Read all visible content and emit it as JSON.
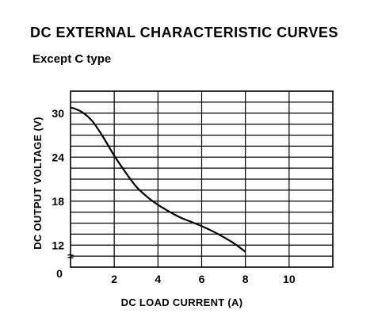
{
  "chart_data": {
    "type": "line",
    "title": "DC EXTERNAL CHARACTERISTIC CURVES",
    "subtitle": "Except C type",
    "xlabel": "DC LOAD CURRENT (A)",
    "ylabel": "DC OUTPUT VOLTAGE (V)",
    "xlim": [
      0,
      12
    ],
    "ylim": [
      9,
      33
    ],
    "origin_label": "0",
    "axis_break_symbol": "≈",
    "x_ticks": [
      {
        "value": 2,
        "label": "2"
      },
      {
        "value": 4,
        "label": "4"
      },
      {
        "value": 6,
        "label": "6"
      },
      {
        "value": 8,
        "label": "8"
      },
      {
        "value": 10,
        "label": "10"
      }
    ],
    "y_ticks": [
      {
        "value": 12,
        "label": "12"
      },
      {
        "value": 18,
        "label": "18"
      },
      {
        "value": 24,
        "label": "24"
      },
      {
        "value": 30,
        "label": "30"
      }
    ],
    "x_grid_step": 2,
    "y_grid_step": 1.5,
    "grid": true,
    "series": [
      {
        "color": "#000000",
        "x": [
          0,
          0.5,
          1,
          1.5,
          2,
          2.5,
          3,
          3.5,
          4,
          4.5,
          5,
          5.5,
          6,
          6.5,
          7,
          7.5,
          8
        ],
        "y": [
          30.8,
          30.2,
          28.9,
          26.7,
          24.2,
          22.0,
          20.0,
          18.6,
          17.5,
          16.6,
          15.8,
          15.2,
          14.6,
          13.9,
          13.1,
          12.2,
          11.1
        ]
      }
    ]
  }
}
